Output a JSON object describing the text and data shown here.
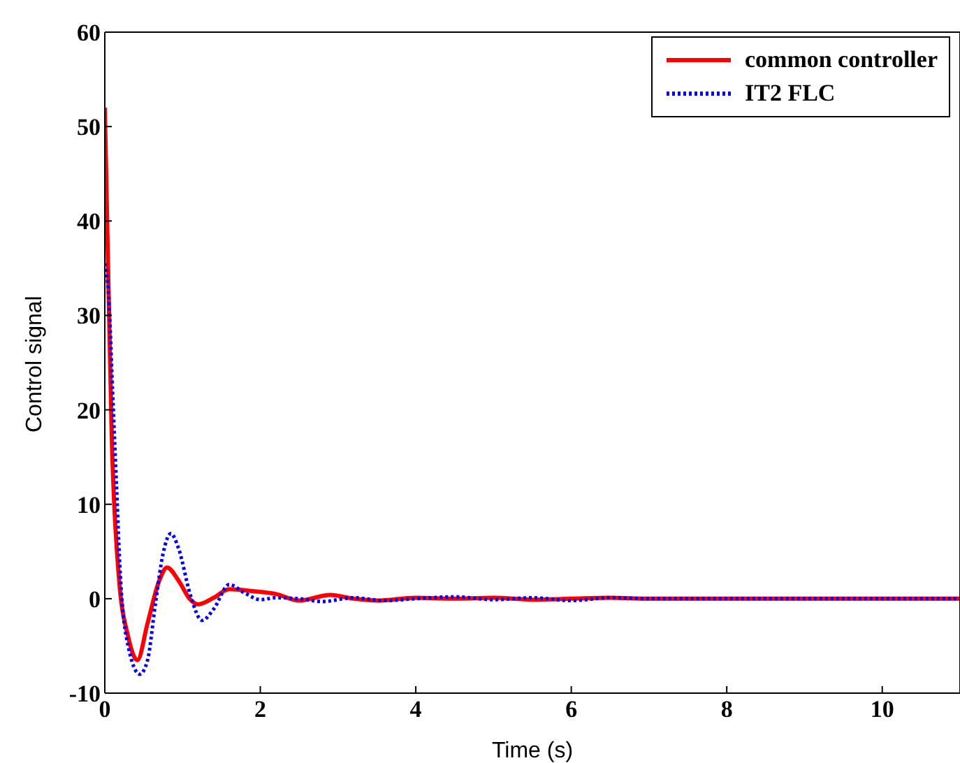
{
  "chart_data": {
    "type": "line",
    "xlabel": "Time (s)",
    "ylabel": "Control signal",
    "xlim": [
      0,
      11
    ],
    "xticks": [
      0,
      2,
      4,
      6,
      8,
      10
    ],
    "ylim": [
      -10,
      60
    ],
    "yticks": [
      -10,
      0,
      10,
      20,
      30,
      40,
      50,
      60
    ],
    "legend": "top right",
    "marker": "none",
    "series": [
      {
        "name": "common controller",
        "color": "#ff0000",
        "line_style": "solid",
        "x": [
          0,
          0.03,
          0.09,
          0.18,
          0.3,
          0.42,
          0.55,
          0.7,
          0.8,
          0.95,
          1.1,
          1.2,
          1.4,
          1.6,
          1.9,
          2.2,
          2.5,
          2.9,
          3.2,
          3.5,
          4,
          4.5,
          5,
          5.5,
          6,
          6.5,
          7,
          8,
          9,
          10,
          11
        ],
        "values": [
          52,
          40,
          17,
          2.4,
          -4,
          -6.5,
          -2.6,
          1.9,
          3.3,
          1.9,
          -0.1,
          -0.6,
          0.1,
          1,
          0.8,
          0.5,
          -0.2,
          0.4,
          0,
          -0.2,
          0.1,
          0,
          0.1,
          -0.1,
          0,
          0.1,
          0,
          0,
          0,
          0,
          0
        ]
      },
      {
        "name": "IT2 FLC",
        "color": "#0000ff",
        "line_style": "dotted",
        "x": [
          0,
          0.05,
          0.1,
          0.15,
          0.2,
          0.3,
          0.45,
          0.55,
          0.65,
          0.75,
          0.85,
          0.95,
          1.1,
          1.25,
          1.4,
          1.6,
          1.8,
          2,
          2.2,
          2.5,
          2.8,
          3.2,
          3.6,
          4,
          4.5,
          5,
          5.5,
          6,
          6.5,
          7,
          8,
          9,
          10,
          11
        ],
        "values": [
          35.5,
          32,
          22,
          12,
          2.4,
          -5,
          -8,
          -6.5,
          -0.6,
          4.8,
          6.9,
          5.3,
          0.4,
          -2.3,
          -1.1,
          1.5,
          0.6,
          -0.1,
          0.1,
          0,
          -0.3,
          0.1,
          -0.2,
          0,
          0.2,
          -0.1,
          0.1,
          -0.2,
          0.1,
          0,
          0,
          0,
          0,
          0
        ]
      }
    ]
  }
}
